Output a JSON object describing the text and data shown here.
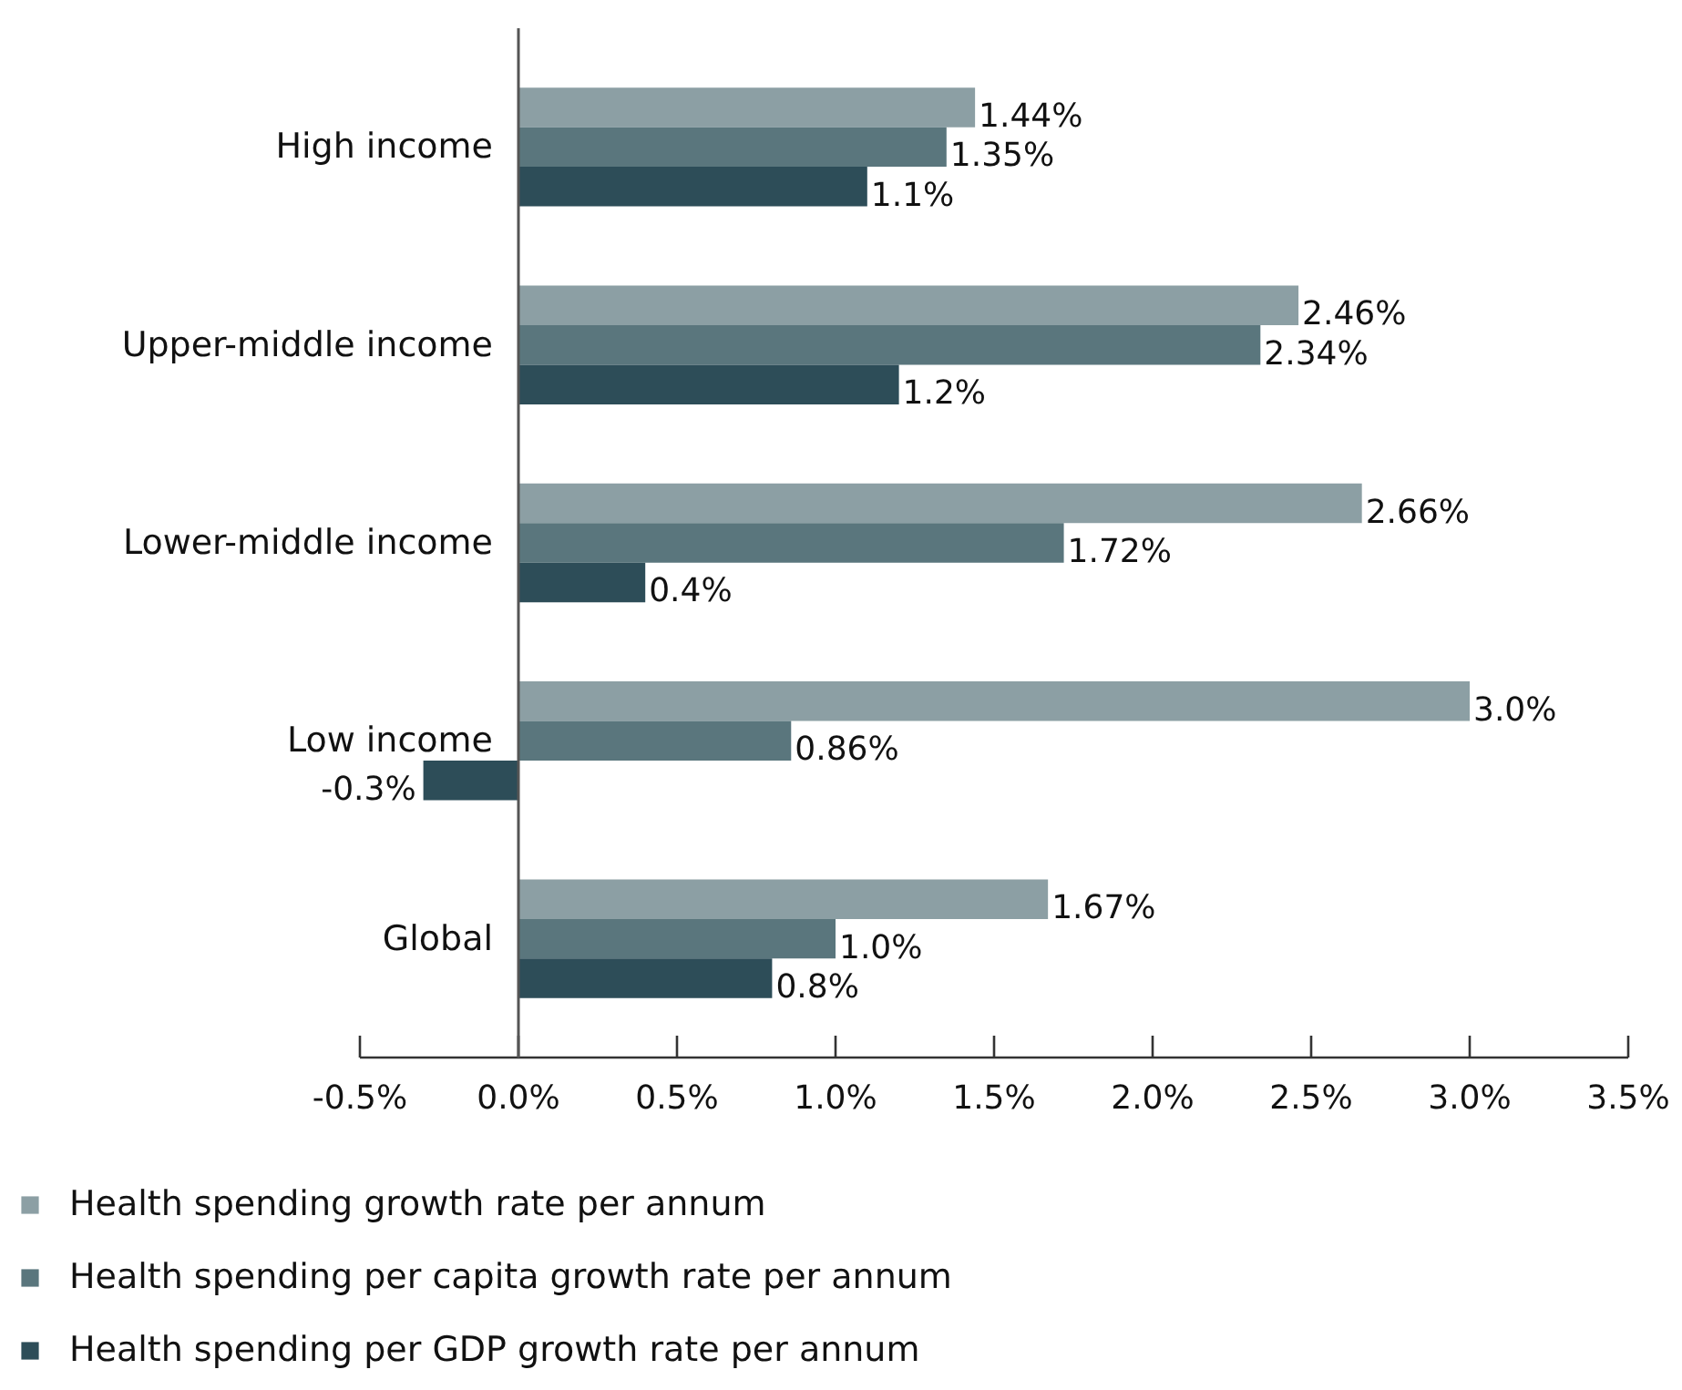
{
  "chart_data": {
    "type": "bar",
    "orientation": "horizontal",
    "categories": [
      "High income",
      "Upper-middle income",
      "Lower-middle income",
      "Low income",
      "Global"
    ],
    "series": [
      {
        "name": "Health spending growth rate per annum",
        "color": "#8c9fa4",
        "values": [
          1.44,
          2.46,
          2.66,
          3.0,
          1.67
        ],
        "value_labels": [
          "1.44%",
          "2.46%",
          "2.66%",
          "3.0%",
          "1.67%"
        ]
      },
      {
        "name": "Health spending per capita growth rate per annum",
        "color": "#5a767d",
        "values": [
          1.35,
          2.34,
          1.72,
          0.86,
          1.0
        ],
        "value_labels": [
          "1.35%",
          "2.34%",
          "1.72%",
          "0.86%",
          "1.0%"
        ]
      },
      {
        "name": "Health spending per GDP growth rate per annum",
        "color": "#2d4d58",
        "values": [
          1.1,
          1.2,
          0.4,
          -0.3,
          0.8
        ],
        "value_labels": [
          "1.1%",
          "1.2%",
          "0.4%",
          "-0.3%",
          "0.8%"
        ]
      }
    ],
    "xlim": [
      -0.5,
      3.5
    ],
    "xticks": [
      {
        "value": -0.5,
        "label": "-0.5%"
      },
      {
        "value": 0.0,
        "label": "0.0%"
      },
      {
        "value": 0.5,
        "label": "0.5%"
      },
      {
        "value": 1.0,
        "label": "1.0%"
      },
      {
        "value": 1.5,
        "label": "1.5%"
      },
      {
        "value": 2.0,
        "label": "2.0%"
      },
      {
        "value": 2.5,
        "label": "2.5%"
      },
      {
        "value": 3.0,
        "label": "3.0%"
      },
      {
        "value": 3.5,
        "label": "3.5%"
      }
    ],
    "legend": "bottom"
  }
}
